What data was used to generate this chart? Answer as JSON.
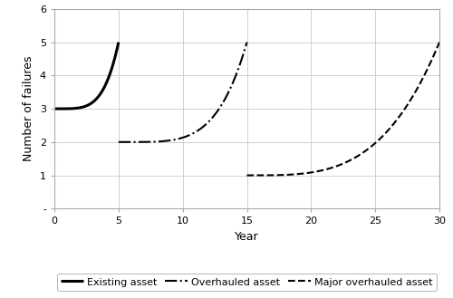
{
  "title": "",
  "xlabel": "Year",
  "ylabel": "Number of failures",
  "xlim": [
    0,
    30
  ],
  "ylim": [
    0,
    6
  ],
  "xticks": [
    0,
    5,
    10,
    15,
    20,
    25,
    30
  ],
  "yticks": [
    0,
    1,
    2,
    3,
    4,
    5,
    6
  ],
  "ytick_labels": [
    "-",
    "1",
    "2",
    "3",
    "4",
    "5",
    "6"
  ],
  "grid_color": "#d0d0d0",
  "line_color": "#000000",
  "legend": [
    {
      "label": "Existing asset",
      "linestyle": "solid",
      "lw": 2.2
    },
    {
      "label": "Overhauled asset",
      "linestyle": "dashdot",
      "lw": 1.5
    },
    {
      "label": "Major overhauled asset",
      "linestyle": "dashed",
      "lw": 1.5
    }
  ],
  "curve1_power": 4.5,
  "curve2_power": 4.5,
  "curve3_power": 3.5,
  "curve1": {
    "x_start": 0,
    "x_end": 5,
    "y_start": 3.0,
    "y_end": 5.0
  },
  "curve2": {
    "x_start": 5,
    "x_end": 15,
    "y_start": 2.0,
    "y_end": 5.0
  },
  "curve3": {
    "x_start": 15,
    "x_end": 30,
    "y_start": 1.0,
    "y_end": 5.0
  },
  "background_color": "#ffffff",
  "spine_color": "#aaaaaa",
  "tick_fontsize": 8,
  "label_fontsize": 9,
  "legend_fontsize": 8
}
